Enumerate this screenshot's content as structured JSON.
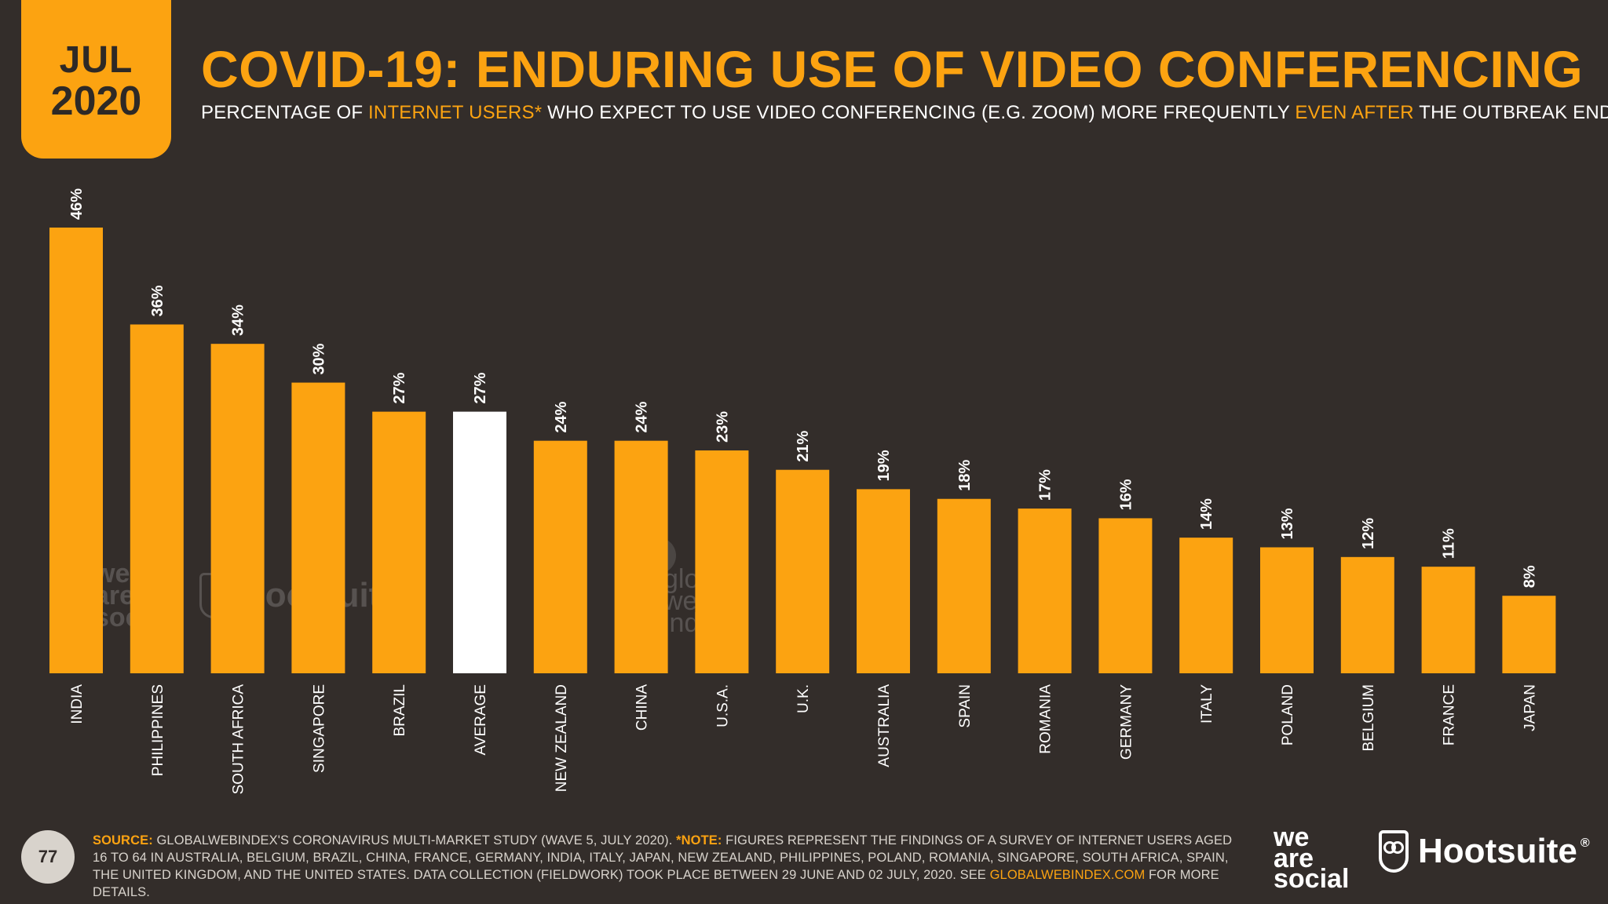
{
  "badge": {
    "month": "JUL",
    "year": "2020"
  },
  "title": "COVID-19: ENDURING USE OF VIDEO CONFERENCING",
  "subtitle": {
    "part1": "PERCENTAGE OF ",
    "hl1": "INTERNET USERS*",
    "part2": " WHO EXPECT TO USE VIDEO CONFERENCING (E.G. ZOOM) MORE FREQUENTLY ",
    "hl2": "EVEN AFTER",
    "part3": " THE OUTBREAK ENDS"
  },
  "colors": {
    "background": "#332d2a",
    "accent": "#fca311",
    "highlight_bar": "#ffffff",
    "text": "#ffffff"
  },
  "chart_data": {
    "type": "bar",
    "title": "COVID-19: ENDURING USE OF VIDEO CONFERENCING",
    "xlabel": "",
    "ylabel": "",
    "ylim": [
      0,
      46
    ],
    "unit": "%",
    "categories": [
      "INDIA",
      "PHILIPPINES",
      "SOUTH AFRICA",
      "SINGAPORE",
      "BRAZIL",
      "AVERAGE",
      "NEW ZEALAND",
      "CHINA",
      "U.S.A.",
      "U.K.",
      "AUSTRALIA",
      "SPAIN",
      "ROMANIA",
      "GERMANY",
      "ITALY",
      "POLAND",
      "BELGIUM",
      "FRANCE",
      "JAPAN"
    ],
    "values": [
      46,
      36,
      34,
      30,
      27,
      27,
      24,
      24,
      23,
      21,
      19,
      18,
      17,
      16,
      14,
      13,
      12,
      11,
      8
    ],
    "highlight": "AVERAGE"
  },
  "watermarks": {
    "was": "we\nare\nsocial",
    "hootsuite": "Hootsuite",
    "gwi": "global\nweb\nindex"
  },
  "footer": {
    "page": "77",
    "source_label": "SOURCE:",
    "source_text": " GLOBALWEBINDEX'S CORONAVIRUS MULTI-MARKET STUDY (WAVE 5, JULY 2020). ",
    "note_label": "*NOTE:",
    "note_text": " FIGURES REPRESENT THE FINDINGS OF A SURVEY OF INTERNET USERS AGED 16 TO 64 IN AUSTRALIA, BELGIUM, BRAZIL, CHINA, FRANCE, GERMANY, INDIA, ITALY, JAPAN, NEW ZEALAND, PHILIPPINES, POLAND, ROMANIA, SINGAPORE, SOUTH AFRICA, SPAIN, THE UNITED KINGDOM, AND THE UNITED STATES. DATA COLLECTION (FIELDWORK) TOOK PLACE BETWEEN 29 JUNE AND 02 JULY, 2020. SEE ",
    "link": "GLOBALWEBINDEX.COM",
    "tail": " FOR MORE DETAILS."
  },
  "logos": {
    "was": "we\nare\nsocial",
    "hootsuite": "Hootsuite",
    "registered": "®"
  }
}
